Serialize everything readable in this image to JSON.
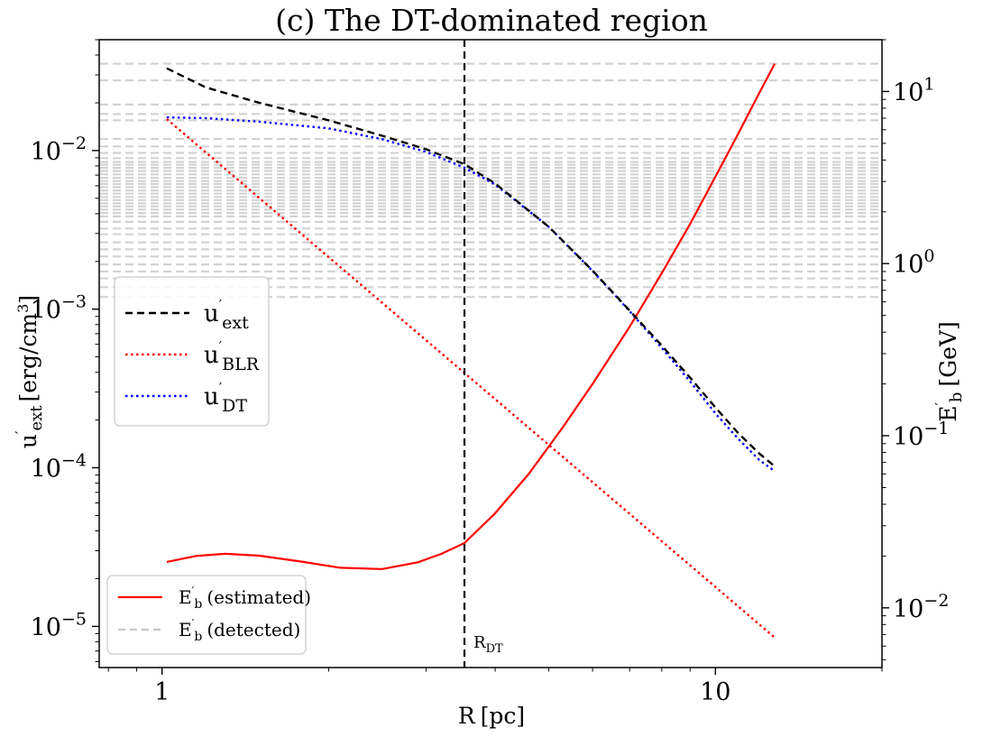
{
  "chart_data": {
    "type": "line",
    "title": "(c) The DT-dominated region",
    "xlabel": {
      "base": "R",
      "unit": "[pc]"
    },
    "ylabel_left": {
      "base": "u",
      "prime": "′",
      "sub": "ext",
      "unit": "[erg/cm",
      "sup": "3",
      "close": "]"
    },
    "ylabel_right": {
      "base": "E",
      "prime": "′",
      "sub": "b",
      "unit": "[GeV]"
    },
    "x_scale": "log",
    "y_scale_left": "log",
    "y_scale_right": "log",
    "xlim": [
      0.77,
      20
    ],
    "ylim_left": [
      5.5e-06,
      0.05
    ],
    "ylim_right": [
      0.0045,
      20
    ],
    "x_ticks": [
      {
        "value": 1,
        "label": "1"
      },
      {
        "value": 10,
        "label": "10"
      }
    ],
    "y_ticks_left": [
      {
        "value": 0.01,
        "base": "10",
        "exp": "−2"
      },
      {
        "value": 0.001,
        "base": "10",
        "exp": "−3"
      },
      {
        "value": 0.0001,
        "base": "10",
        "exp": "−4"
      },
      {
        "value": 1e-05,
        "base": "10",
        "exp": "−5"
      }
    ],
    "y_ticks_right": [
      {
        "value": 10,
        "base": "10",
        "exp": "1"
      },
      {
        "value": 1,
        "base": "10",
        "exp": "0"
      },
      {
        "value": 0.1,
        "base": "10",
        "exp": "−1"
      },
      {
        "value": 0.01,
        "base": "10",
        "exp": "−2"
      }
    ],
    "series_left": [
      {
        "name": "u′ext",
        "key": "u_ext",
        "color": "#000000",
        "style": "dashed",
        "x": [
          1.02,
          1.2,
          1.5,
          2.0,
          2.5,
          3.0,
          3.52,
          4.0,
          5.0,
          6.0,
          7.0,
          8.0,
          9.0,
          10.0,
          11.0,
          12.0,
          12.8
        ],
        "y": [
          0.033,
          0.025,
          0.02,
          0.0155,
          0.0124,
          0.0102,
          0.0082,
          0.0062,
          0.0033,
          0.00175,
          0.00098,
          0.00059,
          0.00037,
          0.00024,
          0.000165,
          0.000123,
          0.000102
        ]
      },
      {
        "name": "u′BLR",
        "key": "u_blr",
        "color": "#ff0000",
        "style": "dotted",
        "x": [
          1.02,
          12.8
        ],
        "y": [
          0.0158,
          8.5e-06
        ]
      },
      {
        "name": "u′DT",
        "key": "u_dt",
        "color": "#0000ff",
        "style": "dotted",
        "x": [
          1.02,
          1.2,
          1.5,
          2.0,
          2.5,
          3.0,
          3.52,
          4.0,
          5.0,
          6.0,
          7.0,
          8.0,
          9.0,
          10.0,
          11.0,
          12.0,
          12.8
        ],
        "y": [
          0.0162,
          0.016,
          0.0152,
          0.0138,
          0.0118,
          0.0098,
          0.0078,
          0.0061,
          0.0033,
          0.00174,
          0.00097,
          0.00057,
          0.00035,
          0.00022,
          0.000152,
          0.000112,
          9.5e-05
        ]
      }
    ],
    "series_right": [
      {
        "name": "E′b (estimated)",
        "key": "eb_est",
        "color": "#ff0000",
        "style": "solid",
        "x": [
          1.02,
          1.15,
          1.3,
          1.5,
          1.8,
          2.1,
          2.5,
          2.9,
          3.2,
          3.52,
          4.0,
          4.6,
          5.3,
          6.0,
          7.0,
          8.0,
          9.0,
          10.0,
          11.0,
          12.0,
          12.8
        ],
        "y": [
          0.0185,
          0.02,
          0.0206,
          0.0201,
          0.0185,
          0.0171,
          0.0168,
          0.0184,
          0.0206,
          0.0238,
          0.0355,
          0.06,
          0.112,
          0.2,
          0.43,
          0.88,
          1.7,
          3.2,
          5.7,
          9.8,
          14.5
        ]
      }
    ],
    "detected_eb_gev": [
      14.5,
      11.6,
      8.4,
      7.4,
      6.8,
      5.3,
      4.8,
      4.4,
      4.1,
      3.9,
      3.75,
      3.6,
      3.45,
      3.3,
      3.15,
      3.02,
      2.9,
      2.78,
      2.66,
      2.55,
      2.44,
      2.34,
      2.24,
      2.15,
      2.06,
      1.97,
      1.88,
      1.75,
      1.6,
      1.48,
      1.33,
      1.21,
      1.1,
      0.99,
      0.9,
      0.82,
      0.73,
      0.64
    ],
    "detected_style": {
      "color": "#c8c8c8",
      "style": "dashed"
    },
    "vline": {
      "x": 3.52,
      "label": "R",
      "label_sub": "DT"
    },
    "legend_upper": {
      "position": "center-left",
      "entries": [
        {
          "key": "u_ext",
          "base": "u",
          "prime": "′",
          "sub": "ext"
        },
        {
          "key": "u_blr",
          "base": "u",
          "prime": "′",
          "sub": "BLR"
        },
        {
          "key": "u_dt",
          "base": "u",
          "prime": "′",
          "sub": "DT"
        }
      ]
    },
    "legend_lower": {
      "position": "bottom-left",
      "entries": [
        {
          "key": "eb_est",
          "base": "E",
          "prime": "′",
          "sub": "b",
          "suffix": "(estimated)"
        },
        {
          "key": "eb_det",
          "base": "E",
          "prime": "′",
          "sub": "b",
          "suffix": "(detected)"
        }
      ]
    }
  }
}
